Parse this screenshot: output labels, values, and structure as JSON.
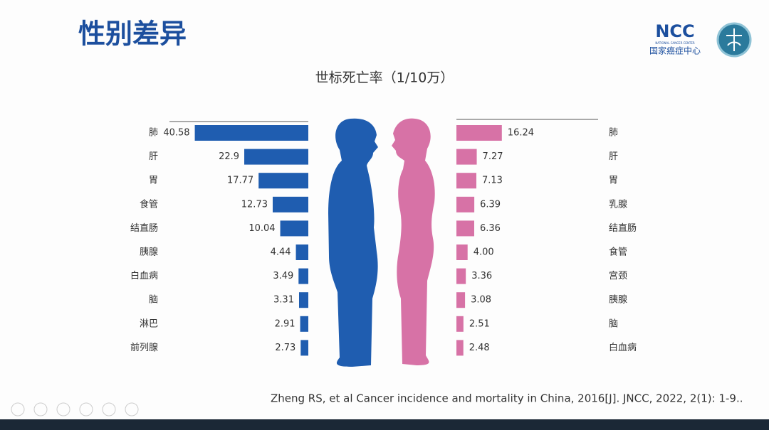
{
  "slide": {
    "title": "性别差异",
    "logo": {
      "abbr": "NCC",
      "subtitle": "NATIONAL CANCER CENTER",
      "name": "国家癌症中心"
    },
    "chart_title": "世标死亡率（1/10万）",
    "citation": "Zheng RS, et al Cancer incidence and mortality in China, 2016[J]. JNCC, 2022, 2(1): 1-9.."
  },
  "chart_data": [
    {
      "type": "bar",
      "orientation": "horizontal",
      "direction": "left",
      "categories": [
        "肺",
        "肝",
        "胃",
        "食管",
        "结直肠",
        "胰腺",
        "白血病",
        "脑",
        "淋巴",
        "前列腺"
      ],
      "values": [
        40.58,
        22.9,
        17.77,
        12.73,
        10.04,
        4.44,
        3.49,
        3.31,
        2.91,
        2.73
      ],
      "color": "#1f5db0",
      "xlim": [
        0,
        42
      ]
    },
    {
      "type": "bar",
      "orientation": "horizontal",
      "direction": "right",
      "categories": [
        "肺",
        "肝",
        "胃",
        "乳腺",
        "结直肠",
        "食管",
        "宫颈",
        "胰腺",
        "脑",
        "白血病"
      ],
      "values": [
        16.24,
        7.27,
        7.13,
        6.39,
        6.36,
        4.0,
        3.36,
        3.08,
        2.51,
        2.48
      ],
      "value_labels": [
        "16.24",
        "7.27",
        "7.13",
        "6.39",
        "6.36",
        "4.00",
        "3.36",
        "3.08",
        "2.51",
        "2.48"
      ],
      "color": "#d772a6",
      "xlim": [
        0,
        42
      ]
    }
  ]
}
